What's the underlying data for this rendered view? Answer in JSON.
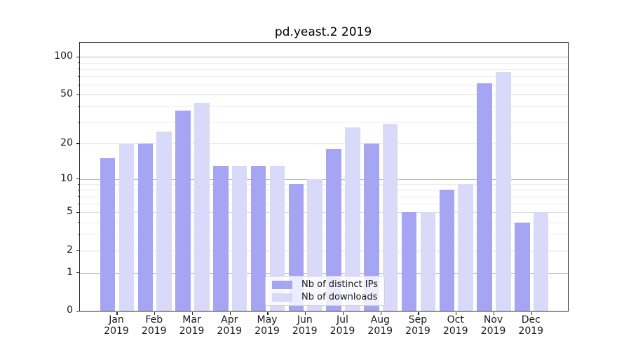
{
  "title": "pd.yeast.2 2019",
  "legend": {
    "position": "lower center",
    "items": [
      {
        "label": "Nb of distinct IPs",
        "color": "#a5a5f3"
      },
      {
        "label": "Nb of downloads",
        "color": "#d9d9f9"
      }
    ]
  },
  "colors": {
    "series_distinct_ips": "#a5a5f3",
    "series_downloads": "#d9d9f9",
    "grid_strong": "#b9b9b9",
    "grid_mid": "#dadada",
    "grid_minor": "#ececec",
    "spine": "#262626",
    "text": "#1a1a1a"
  },
  "chart_data": {
    "type": "bar",
    "title": "pd.yeast.2 2019",
    "categories": [
      "Jan",
      "Feb",
      "Mar",
      "Apr",
      "May",
      "Jun",
      "Jul",
      "Aug",
      "Sep",
      "Oct",
      "Nov",
      "Dec"
    ],
    "year": "2019",
    "series": [
      {
        "name": "Nb of distinct IPs",
        "color": "#a5a5f3",
        "values": [
          15,
          20,
          37,
          13,
          13,
          9,
          18,
          20,
          5,
          8,
          62,
          4
        ]
      },
      {
        "name": "Nb of downloads",
        "color": "#d9d9f9",
        "values": [
          20,
          25,
          43,
          13,
          13,
          10,
          27,
          29,
          5,
          9,
          76,
          5
        ]
      }
    ],
    "xlabel": "",
    "ylabel": "",
    "yscale": "log10(1+y)",
    "ylim": [
      0,
      130
    ],
    "yticks": [
      0,
      1,
      2,
      5,
      10,
      20,
      50,
      100
    ],
    "yticks_strong": [
      1,
      10,
      100
    ],
    "yticks_minor": [
      3,
      4,
      6,
      7,
      8,
      9,
      30,
      40,
      60,
      70,
      80,
      90
    ],
    "grid": true,
    "legend_position": "lower center"
  }
}
